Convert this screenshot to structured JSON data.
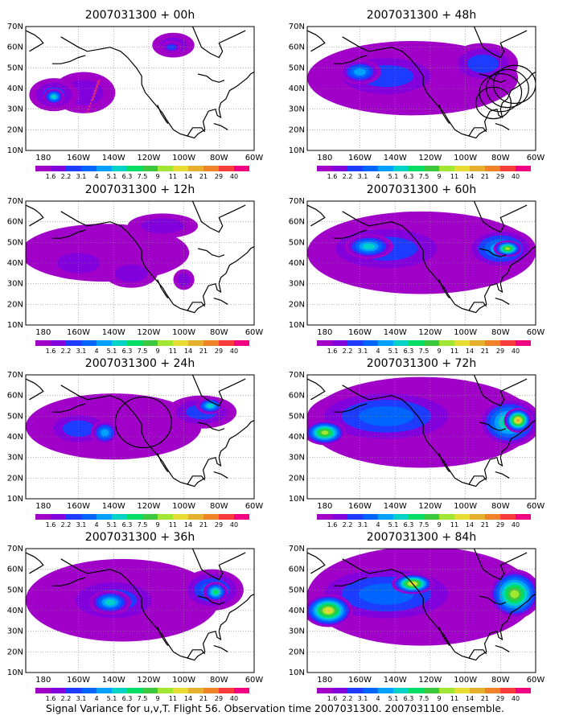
{
  "caption": "Signal Variance for u,v,T. Flight 56. Observation time 2007031300. 2007031100 ensemble.",
  "lat_labels": [
    "70N",
    "60N",
    "50N",
    "40N",
    "30N",
    "20N",
    "10N"
  ],
  "lon_labels": [
    "180",
    "160W",
    "140W",
    "120W",
    "100W",
    "80W",
    "60W"
  ],
  "colorbar": {
    "labels": [
      "1.6",
      "2.2",
      "3.1",
      "4",
      "5.1",
      "6.3",
      "7.5",
      "9",
      "11",
      "14",
      "21",
      "29",
      "40"
    ],
    "colors": [
      "#a000c8",
      "#8200dc",
      "#1e3cff",
      "#0064ff",
      "#00a0ff",
      "#00d2c8",
      "#00dc64",
      "#3cc83c",
      "#a0e632",
      "#e6dc32",
      "#e6af2d",
      "#f08228",
      "#fa3c3c",
      "#f00082"
    ]
  },
  "panels": [
    {
      "title": "2007031300 + 00h",
      "lead_h": 0
    },
    {
      "title": "2007031300 + 12h",
      "lead_h": 12
    },
    {
      "title": "2007031300 + 24h",
      "lead_h": 24
    },
    {
      "title": "2007031300 + 36h",
      "lead_h": 36
    },
    {
      "title": "2007031300 + 48h",
      "lead_h": 48
    },
    {
      "title": "2007031300 + 60h",
      "lead_h": 60
    },
    {
      "title": "2007031300 + 72h",
      "lead_h": 72
    },
    {
      "title": "2007031300 + 84h",
      "lead_h": 84
    }
  ],
  "map_extent": {
    "lon": [
      170,
      300
    ],
    "lat": [
      10,
      70
    ]
  },
  "flight_track": {
    "lon": [
      205,
      207,
      209,
      211,
      212,
      210,
      208
    ],
    "lat": [
      28,
      33,
      38,
      43,
      44,
      39,
      34
    ]
  },
  "variance_blobs": [
    [
      {
        "lon": 203,
        "lat": 38,
        "rx": 18,
        "ry": 10,
        "lvl": 1
      },
      {
        "lon": 186,
        "lat": 37,
        "rx": 14,
        "ry": 8,
        "lvl": 2
      },
      {
        "lon": 186,
        "lat": 36,
        "rx": 6,
        "ry": 4,
        "lvl": 5
      },
      {
        "lon": 254,
        "lat": 61,
        "rx": 12,
        "ry": 6,
        "lvl": 1
      },
      {
        "lon": 253,
        "lat": 60,
        "rx": 6,
        "ry": 3,
        "lvl": 2
      }
    ],
    [
      {
        "lon": 215,
        "lat": 45,
        "rx": 48,
        "ry": 14,
        "lvl": 0
      },
      {
        "lon": 200,
        "lat": 40,
        "rx": 20,
        "ry": 8,
        "lvl": 1
      },
      {
        "lon": 230,
        "lat": 35,
        "rx": 15,
        "ry": 7,
        "lvl": 1
      },
      {
        "lon": 248,
        "lat": 58,
        "rx": 20,
        "ry": 6,
        "lvl": 1
      },
      {
        "lon": 260,
        "lat": 32,
        "rx": 6,
        "ry": 5,
        "lvl": 1
      }
    ],
    [
      {
        "lon": 220,
        "lat": 45,
        "rx": 50,
        "ry": 16,
        "lvl": 0
      },
      {
        "lon": 200,
        "lat": 44,
        "rx": 20,
        "ry": 9,
        "lvl": 2
      },
      {
        "lon": 215,
        "lat": 42,
        "rx": 8,
        "ry": 6,
        "lvl": 4
      },
      {
        "lon": 270,
        "lat": 52,
        "rx": 20,
        "ry": 8,
        "lvl": 2
      },
      {
        "lon": 275,
        "lat": 55,
        "rx": 8,
        "ry": 4,
        "lvl": 5
      }
    ],
    [
      {
        "lon": 225,
        "lat": 45,
        "rx": 55,
        "ry": 20,
        "lvl": 0
      },
      {
        "lon": 220,
        "lat": 45,
        "rx": 30,
        "ry": 12,
        "lvl": 2
      },
      {
        "lon": 218,
        "lat": 44,
        "rx": 12,
        "ry": 6,
        "lvl": 5
      },
      {
        "lon": 276,
        "lat": 50,
        "rx": 18,
        "ry": 10,
        "lvl": 3
      },
      {
        "lon": 278,
        "lat": 49,
        "rx": 7,
        "ry": 5,
        "lvl": 6
      }
    ],
    [
      {
        "lon": 230,
        "lat": 45,
        "rx": 60,
        "ry": 18,
        "lvl": 0
      },
      {
        "lon": 215,
        "lat": 46,
        "rx": 35,
        "ry": 12,
        "lvl": 2
      },
      {
        "lon": 200,
        "lat": 48,
        "rx": 12,
        "ry": 6,
        "lvl": 4
      },
      {
        "lon": 270,
        "lat": 52,
        "rx": 20,
        "ry": 10,
        "lvl": 2
      }
    ],
    [
      {
        "lon": 235,
        "lat": 45,
        "rx": 65,
        "ry": 20,
        "lvl": 0
      },
      {
        "lon": 215,
        "lat": 47,
        "rx": 40,
        "ry": 13,
        "lvl": 2
      },
      {
        "lon": 205,
        "lat": 48,
        "rx": 14,
        "ry": 6,
        "lvl": 5
      },
      {
        "lon": 280,
        "lat": 47,
        "rx": 20,
        "ry": 10,
        "lvl": 4
      },
      {
        "lon": 284,
        "lat": 47,
        "rx": 8,
        "ry": 4,
        "lvl": 8
      }
    ],
    [
      {
        "lon": 235,
        "lat": 47,
        "rx": 65,
        "ry": 22,
        "lvl": 0
      },
      {
        "lon": 215,
        "lat": 50,
        "rx": 45,
        "ry": 14,
        "lvl": 3
      },
      {
        "lon": 180,
        "lat": 42,
        "rx": 12,
        "ry": 6,
        "lvl": 8
      },
      {
        "lon": 285,
        "lat": 47,
        "rx": 18,
        "ry": 12,
        "lvl": 6
      },
      {
        "lon": 290,
        "lat": 48,
        "rx": 8,
        "ry": 6,
        "lvl": 10
      }
    ],
    [
      {
        "lon": 235,
        "lat": 47,
        "rx": 65,
        "ry": 24,
        "lvl": 0
      },
      {
        "lon": 215,
        "lat": 48,
        "rx": 45,
        "ry": 15,
        "lvl": 3
      },
      {
        "lon": 182,
        "lat": 40,
        "rx": 14,
        "ry": 8,
        "lvl": 9
      },
      {
        "lon": 230,
        "lat": 53,
        "rx": 12,
        "ry": 5,
        "lvl": 9
      },
      {
        "lon": 288,
        "lat": 48,
        "rx": 15,
        "ry": 12,
        "lvl": 8
      }
    ]
  ],
  "target_circles": [
    [],
    [],
    [
      {
        "lon": 237,
        "lat": 47,
        "r": 16
      }
    ],
    [],
    [
      {
        "lon": 280,
        "lat": 38,
        "r": 12
      },
      {
        "lon": 284,
        "lat": 40,
        "r": 12
      },
      {
        "lon": 288,
        "lat": 42,
        "r": 12
      },
      {
        "lon": 276,
        "lat": 33,
        "r": 10
      }
    ],
    [],
    [],
    []
  ]
}
